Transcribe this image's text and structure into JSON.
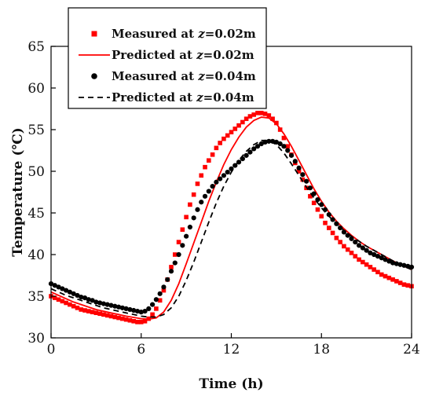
{
  "chart_data": {
    "type": "scatter",
    "title": "",
    "xlabel": "Time (h)",
    "ylabel": "Temperature (℃)",
    "xlim": [
      0,
      24
    ],
    "ylim": [
      30,
      65
    ],
    "xticks": [
      0,
      6,
      12,
      18,
      24
    ],
    "yticks": [
      30,
      35,
      40,
      45,
      50,
      55,
      60,
      65
    ],
    "legend_placement": "top-left",
    "grid": false,
    "series": [
      {
        "name": "Measured at z=0.02m",
        "legend": {
          "pre": "Measured at ",
          "var": "z",
          "post": "=0.02m"
        },
        "kind": "marker",
        "marker": "square",
        "color": "#ff0000",
        "x": [
          0.0,
          0.25,
          0.5,
          0.75,
          1.0,
          1.25,
          1.5,
          1.75,
          2.0,
          2.25,
          2.5,
          2.75,
          3.0,
          3.25,
          3.5,
          3.75,
          4.0,
          4.25,
          4.5,
          4.75,
          5.0,
          5.25,
          5.5,
          5.75,
          6.0,
          6.25,
          6.5,
          6.75,
          7.0,
          7.25,
          7.5,
          7.75,
          8.0,
          8.25,
          8.5,
          8.75,
          9.0,
          9.25,
          9.5,
          9.75,
          10.0,
          10.25,
          10.5,
          10.75,
          11.0,
          11.25,
          11.5,
          11.75,
          12.0,
          12.25,
          12.5,
          12.75,
          13.0,
          13.25,
          13.5,
          13.75,
          14.0,
          14.25,
          14.5,
          14.75,
          15.0,
          15.25,
          15.5,
          15.75,
          16.0,
          16.25,
          16.5,
          16.75,
          17.0,
          17.25,
          17.5,
          17.75,
          18.0,
          18.25,
          18.5,
          18.75,
          19.0,
          19.25,
          19.5,
          19.75,
          20.0,
          20.25,
          20.5,
          20.75,
          21.0,
          21.25,
          21.5,
          21.75,
          22.0,
          22.25,
          22.5,
          22.75,
          23.0,
          23.25,
          23.5,
          23.75,
          24.0
        ],
        "y": [
          35.0,
          34.8,
          34.6,
          34.4,
          34.2,
          34.0,
          33.8,
          33.6,
          33.4,
          33.3,
          33.2,
          33.1,
          33.0,
          32.9,
          32.8,
          32.7,
          32.6,
          32.5,
          32.4,
          32.3,
          32.2,
          32.1,
          32.0,
          31.9,
          31.9,
          32.0,
          32.3,
          32.8,
          33.5,
          34.5,
          35.7,
          37.0,
          38.5,
          40.0,
          41.5,
          43.0,
          44.5,
          46.0,
          47.2,
          48.5,
          49.5,
          50.5,
          51.3,
          52.0,
          52.8,
          53.4,
          53.9,
          54.3,
          54.7,
          55.1,
          55.5,
          55.9,
          56.3,
          56.6,
          56.8,
          57.0,
          57.0,
          56.9,
          56.7,
          56.3,
          55.8,
          55.0,
          54.0,
          53.0,
          52.0,
          51.0,
          50.0,
          49.0,
          48.0,
          47.0,
          46.2,
          45.4,
          44.6,
          43.8,
          43.2,
          42.6,
          42.0,
          41.5,
          41.0,
          40.6,
          40.2,
          39.8,
          39.4,
          39.1,
          38.8,
          38.5,
          38.2,
          37.9,
          37.6,
          37.4,
          37.2,
          37.0,
          36.8,
          36.6,
          36.4,
          36.3,
          36.2
        ]
      },
      {
        "name": "Predicted at z=0.02m",
        "legend": {
          "pre": "Predicted at ",
          "var": "z",
          "post": "=0.02m"
        },
        "kind": "line",
        "dash": "solid",
        "color": "#ff0000",
        "x": [
          0,
          0.5,
          1,
          1.5,
          2,
          2.5,
          3,
          3.5,
          4,
          4.5,
          5,
          5.5,
          6,
          6.5,
          7,
          7.5,
          8,
          8.5,
          9,
          9.5,
          10,
          10.5,
          11,
          11.5,
          12,
          12.5,
          13,
          13.5,
          14,
          14.5,
          15,
          15.5,
          16,
          16.5,
          17,
          17.5,
          18,
          18.5,
          19,
          19.5,
          20,
          20.5,
          21,
          21.5,
          22,
          22.5,
          23,
          23.5,
          24
        ],
        "y": [
          35.5,
          35.1,
          34.7,
          34.3,
          34.0,
          33.7,
          33.4,
          33.2,
          33.0,
          32.8,
          32.6,
          32.45,
          32.3,
          32.25,
          32.4,
          33.1,
          34.5,
          36.5,
          38.9,
          41.4,
          43.9,
          46.4,
          48.7,
          50.8,
          52.6,
          54.1,
          55.3,
          56.1,
          56.5,
          56.4,
          55.7,
          54.5,
          53.0,
          51.3,
          49.6,
          47.9,
          46.4,
          45.1,
          44.0,
          43.1,
          42.3,
          41.6,
          41.0,
          40.5,
          40.0,
          39.5,
          39.0,
          38.6,
          38.2
        ]
      },
      {
        "name": "Measured at z=0.04m",
        "legend": {
          "pre": "Measured at ",
          "var": "z",
          "post": "=0.04m"
        },
        "kind": "marker",
        "marker": "circle",
        "color": "#000000",
        "x": [
          0.0,
          0.25,
          0.5,
          0.75,
          1.0,
          1.25,
          1.5,
          1.75,
          2.0,
          2.25,
          2.5,
          2.75,
          3.0,
          3.25,
          3.5,
          3.75,
          4.0,
          4.25,
          4.5,
          4.75,
          5.0,
          5.25,
          5.5,
          5.75,
          6.0,
          6.25,
          6.5,
          6.75,
          7.0,
          7.25,
          7.5,
          7.75,
          8.0,
          8.25,
          8.5,
          8.75,
          9.0,
          9.25,
          9.5,
          9.75,
          10.0,
          10.25,
          10.5,
          10.75,
          11.0,
          11.25,
          11.5,
          11.75,
          12.0,
          12.25,
          12.5,
          12.75,
          13.0,
          13.25,
          13.5,
          13.75,
          14.0,
          14.25,
          14.5,
          14.75,
          15.0,
          15.25,
          15.5,
          15.75,
          16.0,
          16.25,
          16.5,
          16.75,
          17.0,
          17.25,
          17.5,
          17.75,
          18.0,
          18.25,
          18.5,
          18.75,
          19.0,
          19.25,
          19.5,
          19.75,
          20.0,
          20.25,
          20.5,
          20.75,
          21.0,
          21.25,
          21.5,
          21.75,
          22.0,
          22.25,
          22.5,
          22.75,
          23.0,
          23.25,
          23.5,
          23.75,
          24.0
        ],
        "y": [
          36.5,
          36.3,
          36.1,
          35.9,
          35.7,
          35.5,
          35.3,
          35.1,
          34.9,
          34.8,
          34.6,
          34.5,
          34.3,
          34.2,
          34.1,
          34.0,
          33.9,
          33.8,
          33.7,
          33.6,
          33.5,
          33.4,
          33.3,
          33.2,
          33.1,
          33.2,
          33.5,
          34.0,
          34.6,
          35.3,
          36.1,
          37.0,
          38.0,
          39.0,
          40.0,
          41.1,
          42.2,
          43.3,
          44.4,
          45.4,
          46.3,
          47.0,
          47.6,
          48.2,
          48.7,
          49.1,
          49.5,
          49.9,
          50.3,
          50.7,
          51.1,
          51.5,
          51.9,
          52.3,
          52.7,
          53.0,
          53.3,
          53.5,
          53.6,
          53.6,
          53.5,
          53.3,
          53.0,
          52.5,
          51.9,
          51.2,
          50.4,
          49.6,
          48.8,
          48.0,
          47.3,
          46.6,
          46.0,
          45.4,
          44.8,
          44.2,
          43.7,
          43.2,
          42.7,
          42.3,
          41.9,
          41.5,
          41.1,
          40.8,
          40.5,
          40.2,
          40.0,
          39.8,
          39.6,
          39.4,
          39.2,
          39.0,
          38.9,
          38.8,
          38.7,
          38.6,
          38.5
        ]
      },
      {
        "name": "Predicted at  z=0.04m",
        "legend": {
          "pre": "Predicted at  ",
          "var": "z",
          "post": "=0.04m"
        },
        "kind": "line",
        "dash": "dashed",
        "color": "#000000",
        "x": [
          0,
          0.5,
          1,
          1.5,
          2,
          2.5,
          3,
          3.5,
          4,
          4.5,
          5,
          5.5,
          6,
          6.5,
          7,
          7.5,
          8,
          8.5,
          9,
          9.5,
          10,
          10.5,
          11,
          11.5,
          12,
          12.5,
          13,
          13.5,
          14,
          14.5,
          15,
          15.5,
          16,
          16.5,
          17,
          17.5,
          18,
          18.5,
          19,
          19.5,
          20,
          20.5,
          21,
          21.5,
          22,
          22.5,
          23,
          23.5,
          24
        ],
        "y": [
          35.9,
          35.5,
          35.1,
          34.8,
          34.5,
          34.2,
          33.9,
          33.6,
          33.4,
          33.2,
          33.0,
          32.8,
          32.6,
          32.5,
          32.5,
          32.8,
          33.6,
          35.0,
          36.9,
          39.1,
          41.5,
          43.9,
          46.2,
          48.2,
          49.9,
          51.3,
          52.4,
          53.2,
          53.7,
          53.7,
          53.2,
          52.2,
          50.9,
          49.5,
          48.1,
          46.8,
          45.6,
          44.6,
          43.7,
          42.9,
          42.2,
          41.6,
          41.0,
          40.5,
          40.0,
          39.5,
          39.0,
          38.6,
          38.2
        ]
      }
    ]
  }
}
